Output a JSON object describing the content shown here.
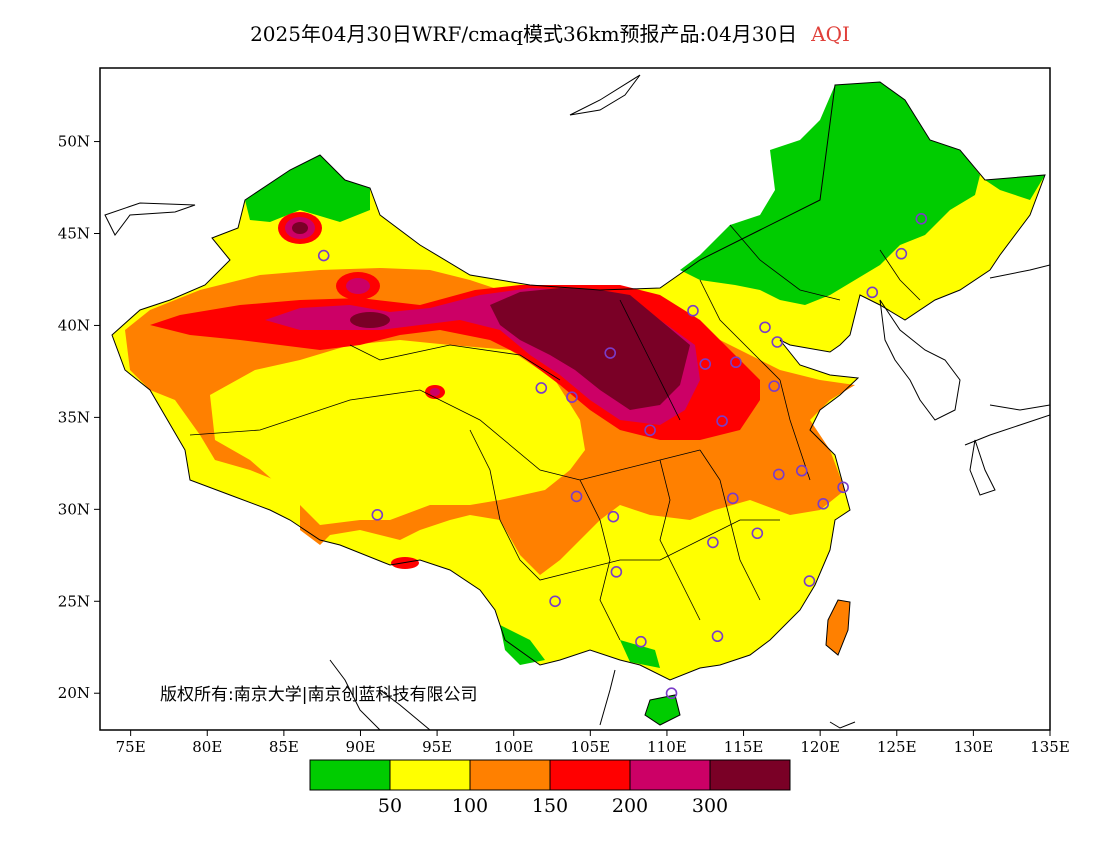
{
  "title": {
    "text": "2025年04月30日WRF/cmaq模式36km预报产品:04月30日",
    "variable": "AQI",
    "variable_color": "#e0403a"
  },
  "copyright": "版权所有:南京大学|南京创蓝科技有限公司",
  "chart_data": {
    "type": "heatmap",
    "title": "2025年04月30日WRF/cmaq模式36km预报产品:04月30日 AQI",
    "map_extent": {
      "lon": [
        73,
        135
      ],
      "lat": [
        18,
        54
      ]
    },
    "x_ticks": [
      "75E",
      "80E",
      "85E",
      "90E",
      "95E",
      "100E",
      "105E",
      "110E",
      "115E",
      "120E",
      "125E",
      "130E",
      "135E"
    ],
    "x_tick_values": [
      75,
      80,
      85,
      90,
      95,
      100,
      105,
      110,
      115,
      120,
      125,
      130,
      135
    ],
    "y_ticks": [
      "20N",
      "25N",
      "30N",
      "35N",
      "40N",
      "45N",
      "50N"
    ],
    "y_tick_values": [
      20,
      25,
      30,
      35,
      40,
      45,
      50
    ],
    "colorbar": {
      "colors": [
        "#00cc00",
        "#ffff00",
        "#ff8000",
        "#ff0000",
        "#cc0066",
        "#7a0026"
      ],
      "labels": [
        "50",
        "100",
        "150",
        "200",
        "300"
      ],
      "boundaries": [
        50,
        100,
        150,
        200,
        300
      ]
    },
    "stations": [
      [
        87.6,
        43.8
      ],
      [
        91.1,
        29.7
      ],
      [
        101.8,
        36.6
      ],
      [
        103.8,
        36.1
      ],
      [
        106.3,
        38.5
      ],
      [
        104.1,
        30.7
      ],
      [
        106.5,
        29.6
      ],
      [
        106.7,
        26.6
      ],
      [
        102.7,
        25.0
      ],
      [
        108.3,
        22.8
      ],
      [
        110.3,
        20.0
      ],
      [
        111.7,
        40.8
      ],
      [
        112.5,
        37.9
      ],
      [
        113.6,
        34.8
      ],
      [
        114.5,
        38.0
      ],
      [
        116.4,
        39.9
      ],
      [
        117.2,
        39.1
      ],
      [
        117.0,
        36.7
      ],
      [
        117.3,
        31.9
      ],
      [
        118.8,
        32.1
      ],
      [
        120.2,
        30.3
      ],
      [
        121.5,
        31.2
      ],
      [
        119.3,
        26.1
      ],
      [
        115.9,
        28.7
      ],
      [
        113.0,
        28.2
      ],
      [
        114.3,
        30.6
      ],
      [
        113.3,
        23.1
      ],
      [
        108.9,
        34.3
      ],
      [
        123.4,
        41.8
      ],
      [
        125.3,
        43.9
      ],
      [
        126.6,
        45.8
      ]
    ]
  }
}
